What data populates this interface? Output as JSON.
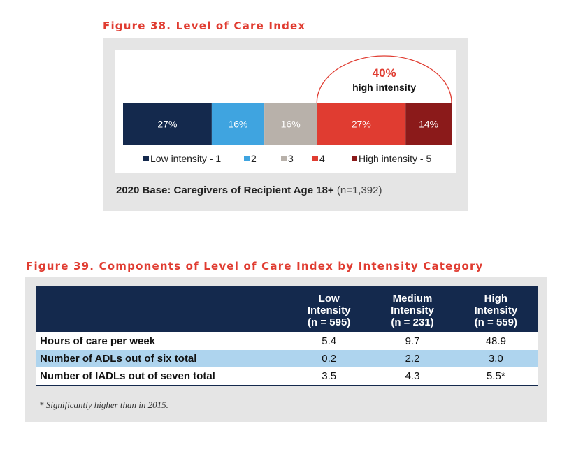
{
  "figure38": {
    "title": "Figure 38. Level of Care Index",
    "base_label": "2020 Base: Caregivers of Recipient Age 18+",
    "base_n": "(n=1,392)"
  },
  "chart_data": {
    "type": "bar",
    "stacked": true,
    "orientation": "horizontal",
    "categories": [
      "Low intensity - 1",
      "2",
      "3",
      "4",
      "High intensity - 5"
    ],
    "values": [
      27,
      16,
      16,
      27,
      14
    ],
    "labels": [
      "27%",
      "16%",
      "16%",
      "27%",
      "14%"
    ],
    "colors": [
      "#14294d",
      "#3fa4e0",
      "#b8b1aa",
      "#e03c31",
      "#8b1a1a"
    ],
    "legend_placement": "bottom",
    "annotation": {
      "value": "40%",
      "text": "high intensity",
      "spans": [
        3,
        4
      ]
    }
  },
  "figure39": {
    "title": "Figure 39. Components of Level of Care Index by Intensity Category",
    "columns": [
      {
        "line1": "Low",
        "line2": "Intensity",
        "line3": "(n = 595)"
      },
      {
        "line1": "Medium",
        "line2": "Intensity",
        "line3": "(n = 231)"
      },
      {
        "line1": "High",
        "line2": "Intensity",
        "line3": "(n = 559)"
      }
    ],
    "rows": [
      {
        "label": "Hours of care per week",
        "values": [
          "5.4",
          "9.7",
          "48.9"
        ]
      },
      {
        "label": "Number of ADLs out of six total",
        "values": [
          "0.2",
          "2.2",
          "3.0"
        ]
      },
      {
        "label": "Number of IADLs out of seven total",
        "values": [
          "3.5",
          "4.3",
          "5.5*"
        ]
      }
    ],
    "footnote": "* Significantly higher than in 2015."
  }
}
